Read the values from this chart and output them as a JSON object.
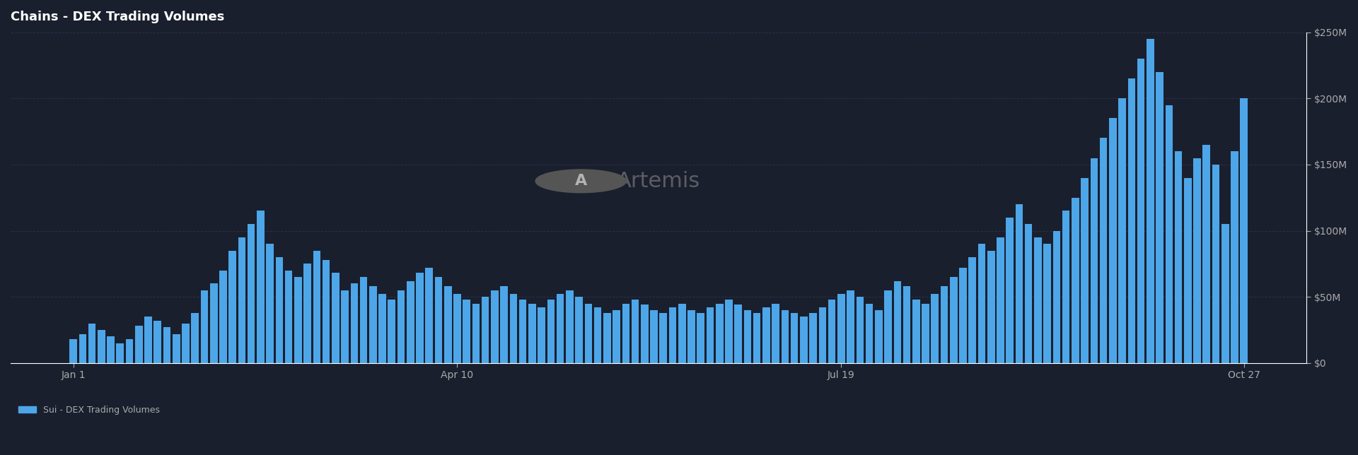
{
  "title": "Chains - DEX Trading Volumes",
  "legend_label": "Sui - DEX Trading Volumes",
  "bar_color": "#4da6e8",
  "background_color": "#1a1f2e",
  "axes_background": "#1a1f2e",
  "grid_color": "#2e3450",
  "text_color": "#ffffff",
  "tick_color": "#aaaaaa",
  "ylim": [
    0,
    250000000
  ],
  "yticks": [
    0,
    50000000,
    100000000,
    150000000,
    200000000,
    250000000
  ],
  "ytick_labels": [
    "$0",
    "$50M",
    "$100M",
    "$150M",
    "$200M",
    "$250M"
  ],
  "xtick_labels": [
    "Jan 1",
    "Apr 10",
    "Jul 19",
    "Oct 27"
  ],
  "values": [
    18000000,
    22000000,
    30000000,
    25000000,
    20000000,
    15000000,
    18000000,
    28000000,
    35000000,
    32000000,
    27000000,
    22000000,
    30000000,
    38000000,
    55000000,
    60000000,
    70000000,
    85000000,
    95000000,
    105000000,
    115000000,
    90000000,
    80000000,
    70000000,
    65000000,
    75000000,
    85000000,
    78000000,
    68000000,
    55000000,
    60000000,
    65000000,
    58000000,
    52000000,
    48000000,
    55000000,
    62000000,
    68000000,
    72000000,
    65000000,
    58000000,
    52000000,
    48000000,
    45000000,
    50000000,
    55000000,
    58000000,
    52000000,
    48000000,
    45000000,
    42000000,
    48000000,
    52000000,
    55000000,
    50000000,
    45000000,
    42000000,
    38000000,
    40000000,
    45000000,
    48000000,
    44000000,
    40000000,
    38000000,
    42000000,
    45000000,
    40000000,
    38000000,
    42000000,
    45000000,
    48000000,
    44000000,
    40000000,
    38000000,
    42000000,
    45000000,
    40000000,
    38000000,
    35000000,
    38000000,
    42000000,
    48000000,
    52000000,
    55000000,
    50000000,
    45000000,
    40000000,
    55000000,
    62000000,
    58000000,
    48000000,
    45000000,
    52000000,
    58000000,
    65000000,
    72000000,
    80000000,
    90000000,
    85000000,
    95000000,
    110000000,
    120000000,
    105000000,
    95000000,
    90000000,
    100000000,
    115000000,
    125000000,
    140000000,
    155000000,
    170000000,
    185000000,
    200000000,
    215000000,
    230000000,
    245000000,
    220000000,
    195000000,
    160000000,
    140000000,
    155000000,
    165000000,
    150000000,
    105000000,
    160000000,
    200000000
  ]
}
